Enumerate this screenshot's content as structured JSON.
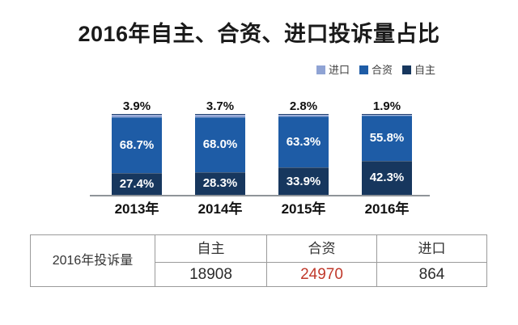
{
  "title": "2016年自主、合资、进口投诉量占比",
  "colors": {
    "own": "#17375E",
    "joint": "#1E5CA6",
    "import": "#8FA3D4",
    "sliver_edge": "#1F3E6E",
    "highlight": "#C0392B"
  },
  "legend": {
    "items": [
      {
        "label": "进口",
        "color_key": "import"
      },
      {
        "label": "合资",
        "color_key": "joint"
      },
      {
        "label": "自主",
        "color_key": "own"
      }
    ]
  },
  "chart_data": {
    "type": "bar",
    "variant": "stacked-100-percent",
    "title": "2016年自主、合资、进口投诉量占比",
    "categories": [
      "2013年",
      "2014年",
      "2015年",
      "2016年"
    ],
    "series": [
      {
        "name": "自主",
        "color_key": "own",
        "values": [
          27.4,
          28.3,
          33.9,
          42.3
        ],
        "label_position": "inside"
      },
      {
        "name": "合资",
        "color_key": "joint",
        "values": [
          68.7,
          68.0,
          63.3,
          55.8
        ],
        "label_position": "inside"
      },
      {
        "name": "进口",
        "color_key": "import",
        "values": [
          3.9,
          3.7,
          2.8,
          1.9
        ],
        "label_position": "above"
      }
    ],
    "value_suffix": "%",
    "ylim": [
      0,
      100
    ],
    "grid": false,
    "legend_position": "top-right"
  },
  "table": {
    "row_header": "2016年投诉量",
    "columns": [
      "自主",
      "合资",
      "进口"
    ],
    "values": [
      "18908",
      "24970",
      "864"
    ],
    "highlight_column_index": 1
  }
}
